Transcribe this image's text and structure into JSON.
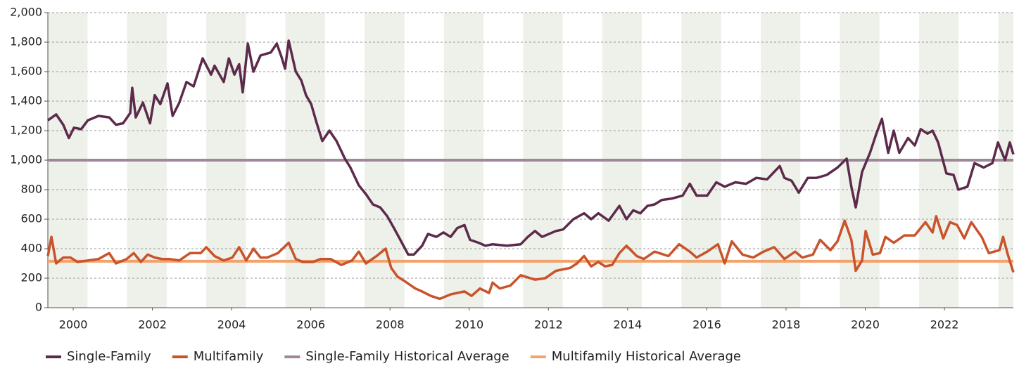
{
  "chart_data": {
    "type": "line",
    "xlim": [
      1999.36,
      2023.74
    ],
    "xticks": [
      2000,
      2002,
      2004,
      2006,
      2008,
      2010,
      2012,
      2014,
      2016,
      2018,
      2020,
      2022
    ],
    "ylim": [
      0,
      2000
    ],
    "yticks": [
      0,
      200,
      400,
      600,
      800,
      {
        "value": 1000,
        "label": "1,000"
      },
      {
        "value": 1200,
        "label": "1,200"
      },
      {
        "value": 1400,
        "label": "1,400"
      },
      {
        "value": 1600,
        "label": "1,600"
      },
      {
        "value": 1800,
        "label": "1,800"
      },
      {
        "value": 2000,
        "label": "2,000"
      }
    ],
    "grid": true,
    "series": [
      {
        "name": "Single-Family",
        "color": "#5c2a4a",
        "x": [
          1999.36,
          1999.57,
          1999.75,
          1999.89,
          2000.02,
          2000.2,
          2000.37,
          2000.64,
          2000.91,
          2001.08,
          2001.26,
          2001.44,
          2001.49,
          2001.58,
          2001.76,
          2001.94,
          2002.06,
          2002.2,
          2002.38,
          2002.51,
          2002.68,
          2002.86,
          2003.04,
          2003.27,
          2003.48,
          2003.57,
          2003.8,
          2003.93,
          2004.07,
          2004.19,
          2004.28,
          2004.41,
          2004.55,
          2004.73,
          2004.99,
          2005.14,
          2005.26,
          2005.35,
          2005.44,
          2005.62,
          2005.76,
          2005.88,
          2006.01,
          2006.15,
          2006.29,
          2006.47,
          2006.65,
          2006.86,
          2007.0,
          2007.21,
          2007.39,
          2007.57,
          2007.75,
          2007.93,
          2008.1,
          2008.28,
          2008.46,
          2008.6,
          2008.81,
          2008.96,
          2009.17,
          2009.35,
          2009.53,
          2009.7,
          2009.88,
          2010.02,
          2010.24,
          2010.41,
          2010.59,
          2010.95,
          2011.3,
          2011.48,
          2011.66,
          2011.84,
          2012.19,
          2012.37,
          2012.63,
          2012.9,
          2013.08,
          2013.26,
          2013.52,
          2013.79,
          2013.97,
          2014.14,
          2014.32,
          2014.5,
          2014.68,
          2014.86,
          2015.12,
          2015.39,
          2015.57,
          2015.74,
          2016.01,
          2016.24,
          2016.45,
          2016.72,
          2016.99,
          2017.25,
          2017.52,
          2017.84,
          2017.96,
          2018.14,
          2018.32,
          2018.55,
          2018.77,
          2019.03,
          2019.3,
          2019.53,
          2019.65,
          2019.76,
          2019.92,
          2020.12,
          2020.28,
          2020.42,
          2020.58,
          2020.72,
          2020.86,
          2021.08,
          2021.25,
          2021.4,
          2021.57,
          2021.7,
          2021.84,
          2022.05,
          2022.23,
          2022.35,
          2022.58,
          2022.76,
          2022.99,
          2023.21,
          2023.35,
          2023.53,
          2023.65,
          2023.74
        ],
        "values": [
          1270,
          1310,
          1240,
          1150,
          1220,
          1210,
          1270,
          1300,
          1290,
          1240,
          1250,
          1320,
          1490,
          1290,
          1390,
          1250,
          1440,
          1380,
          1520,
          1300,
          1390,
          1530,
          1500,
          1690,
          1580,
          1640,
          1530,
          1690,
          1580,
          1650,
          1460,
          1790,
          1600,
          1710,
          1730,
          1790,
          1700,
          1620,
          1810,
          1600,
          1540,
          1440,
          1380,
          1250,
          1130,
          1200,
          1130,
          1010,
          950,
          830,
          770,
          700,
          680,
          620,
          540,
          450,
          360,
          360,
          420,
          500,
          480,
          510,
          480,
          540,
          560,
          460,
          440,
          420,
          430,
          420,
          430,
          480,
          520,
          480,
          520,
          530,
          600,
          640,
          600,
          640,
          590,
          690,
          600,
          660,
          640,
          690,
          700,
          730,
          740,
          760,
          840,
          760,
          760,
          850,
          820,
          850,
          840,
          880,
          870,
          960,
          880,
          860,
          780,
          880,
          880,
          900,
          950,
          1010,
          820,
          680,
          920,
          1050,
          1180,
          1280,
          1050,
          1200,
          1050,
          1150,
          1100,
          1210,
          1180,
          1200,
          1120,
          910,
          900,
          800,
          820,
          980,
          950,
          980,
          1120,
          1000,
          1120,
          1040
        ]
      },
      {
        "name": "Multifamily",
        "color": "#c9532a",
        "x": [
          1999.36,
          1999.45,
          1999.57,
          1999.75,
          1999.93,
          2000.11,
          2000.37,
          2000.64,
          2000.91,
          2001.08,
          2001.35,
          2001.53,
          2001.71,
          2001.88,
          2002.06,
          2002.24,
          2002.42,
          2002.68,
          2002.95,
          2003.22,
          2003.36,
          2003.57,
          2003.8,
          2004.02,
          2004.19,
          2004.37,
          2004.55,
          2004.73,
          2004.9,
          2005.17,
          2005.44,
          2005.62,
          2005.79,
          2006.06,
          2006.24,
          2006.5,
          2006.77,
          2007.04,
          2007.21,
          2007.39,
          2007.66,
          2007.89,
          2008.03,
          2008.19,
          2008.37,
          2008.64,
          2008.81,
          2009.03,
          2009.26,
          2009.53,
          2009.7,
          2009.88,
          2010.06,
          2010.27,
          2010.5,
          2010.59,
          2010.77,
          2011.04,
          2011.3,
          2011.66,
          2011.92,
          2012.19,
          2012.55,
          2012.72,
          2012.9,
          2013.08,
          2013.26,
          2013.43,
          2013.61,
          2013.79,
          2013.97,
          2014.23,
          2014.41,
          2014.68,
          2015.03,
          2015.3,
          2015.57,
          2015.74,
          2016.01,
          2016.28,
          2016.45,
          2016.63,
          2016.9,
          2017.17,
          2017.43,
          2017.7,
          2017.96,
          2018.23,
          2018.41,
          2018.68,
          2018.86,
          2019.12,
          2019.3,
          2019.48,
          2019.65,
          2019.76,
          2019.92,
          2020.01,
          2020.19,
          2020.37,
          2020.51,
          2020.72,
          2020.99,
          2021.25,
          2021.52,
          2021.7,
          2021.79,
          2021.97,
          2022.14,
          2022.32,
          2022.5,
          2022.68,
          2022.94,
          2023.12,
          2023.39,
          2023.48,
          2023.6,
          2023.74
        ],
        "values": [
          350,
          480,
          300,
          340,
          340,
          310,
          320,
          330,
          370,
          300,
          330,
          370,
          310,
          360,
          340,
          330,
          330,
          320,
          370,
          370,
          410,
          350,
          320,
          340,
          410,
          320,
          400,
          340,
          340,
          370,
          440,
          330,
          310,
          310,
          330,
          330,
          290,
          320,
          380,
          300,
          350,
          400,
          270,
          210,
          180,
          130,
          110,
          80,
          60,
          90,
          100,
          110,
          80,
          130,
          100,
          170,
          130,
          150,
          220,
          190,
          200,
          250,
          270,
          300,
          350,
          280,
          310,
          280,
          290,
          370,
          420,
          350,
          330,
          380,
          350,
          430,
          380,
          340,
          380,
          430,
          300,
          450,
          360,
          340,
          380,
          410,
          330,
          380,
          340,
          360,
          460,
          390,
          450,
          590,
          460,
          250,
          320,
          520,
          360,
          370,
          480,
          440,
          490,
          490,
          580,
          510,
          620,
          470,
          580,
          560,
          470,
          580,
          480,
          370,
          390,
          480,
          360,
          240
        ]
      },
      {
        "name": "Single-Family Historical Average",
        "color": "#9d8798",
        "value": 1000
      },
      {
        "name": "Multifamily Historical Average",
        "color": "#f2a36b",
        "value": 315
      }
    ]
  }
}
